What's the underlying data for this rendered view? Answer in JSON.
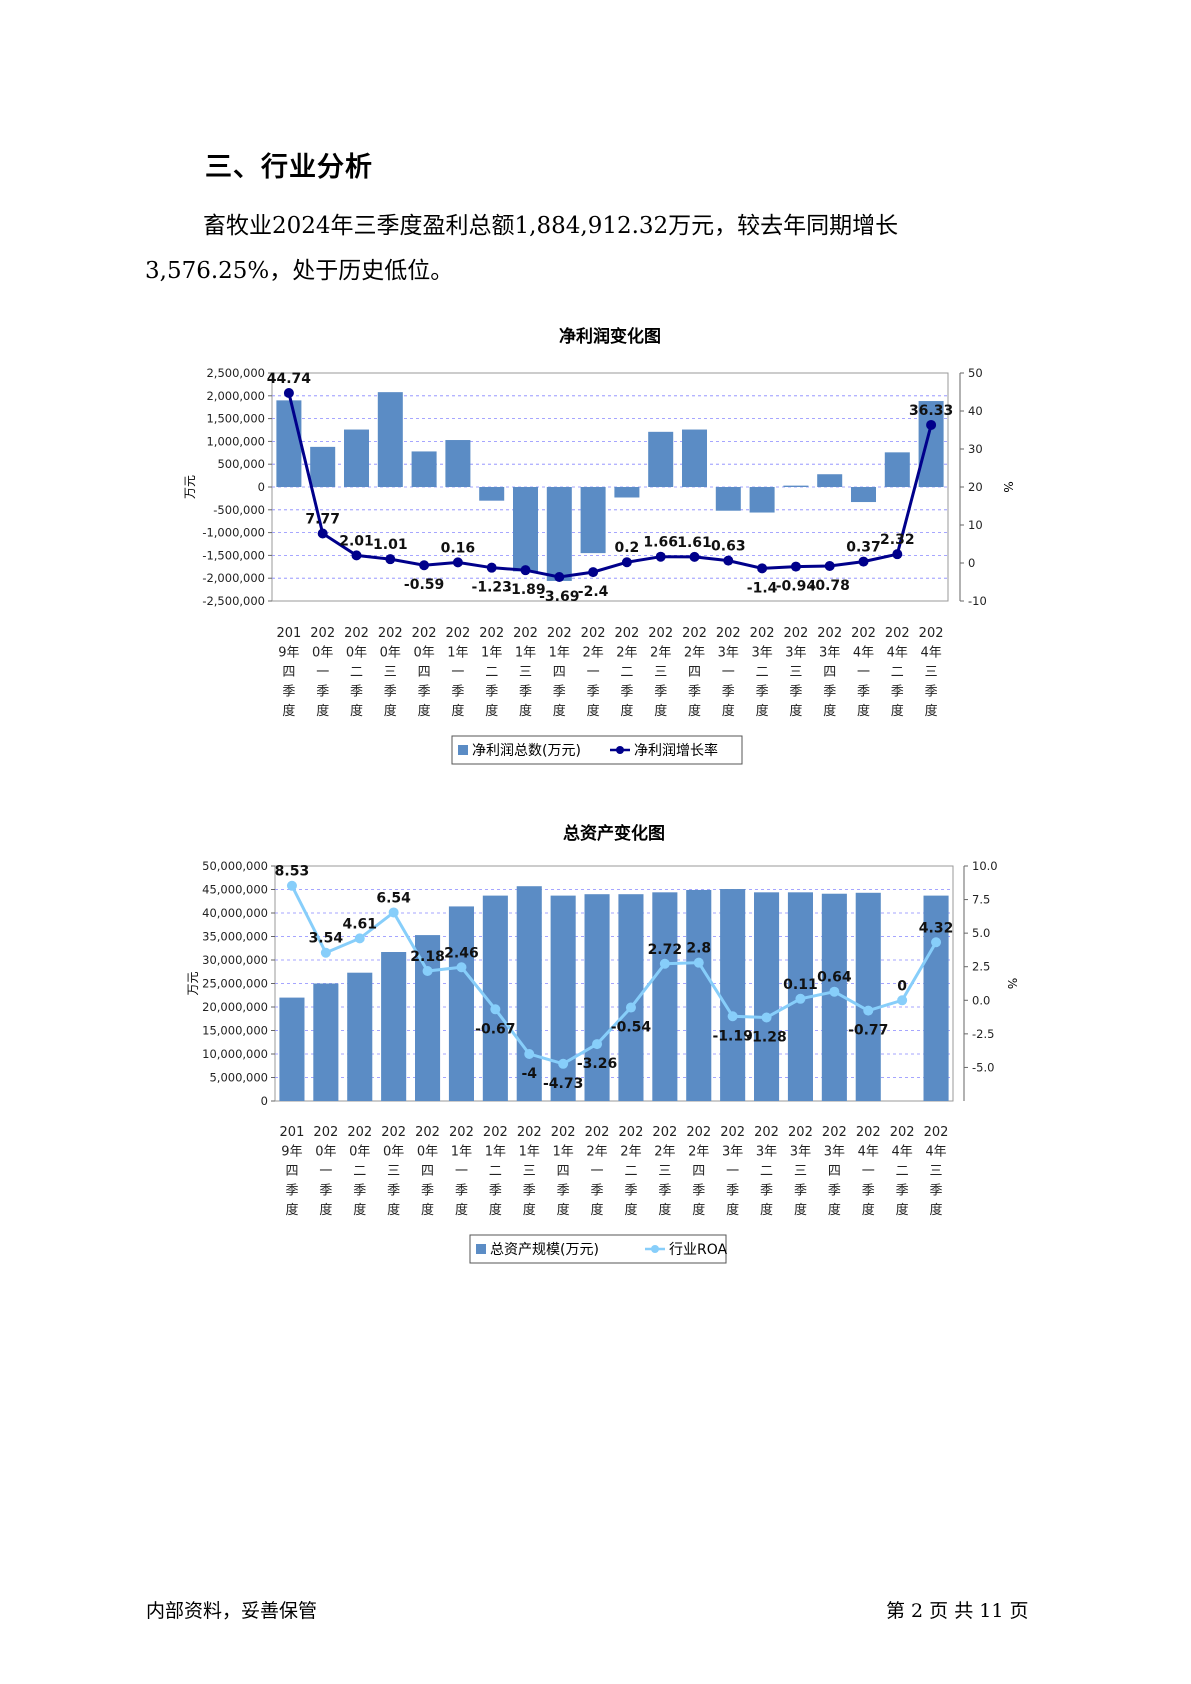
{
  "section_title": "三、行业分析",
  "paragraph": "畜牧业2024年三季度盈利总额1,884,912.32万元，较去年同期增长3,576.25%，处于历史低位。",
  "footer": {
    "left": "内部资料，妥善保管",
    "right": "第 2 页   共 11 页"
  },
  "chart_data": [
    {
      "type": "bar+line",
      "title": "净利润变化图",
      "ylabel": "万元",
      "y2label": "%",
      "ylim": [
        -2500000,
        2500000
      ],
      "yticks": [
        "2,500,000",
        "2,000,000",
        "1,500,000",
        "1,000,000",
        "500,000",
        "0",
        "-500,000",
        "-1,000,000",
        "-1,500,000",
        "-2,000,000",
        "-2,500,000"
      ],
      "y2lim": [
        -10,
        50
      ],
      "y2ticks": [
        "50",
        "40",
        "30",
        "20",
        "10",
        "0",
        "-10"
      ],
      "categories": [
        "2019年四季度",
        "2020年一季度",
        "2020年二季度",
        "2020年三季度",
        "2020年四季度",
        "2021年一季度",
        "2021年二季度",
        "2021年三季度",
        "2021年四季度",
        "2022年一季度",
        "2022年二季度",
        "2022年三季度",
        "2022年四季度",
        "2023年一季度",
        "2023年二季度",
        "2023年三季度",
        "2023年四季度",
        "2024年一季度",
        "2024年二季度",
        "2024年三季度"
      ],
      "bar_series": {
        "name": "净利润总数(万元)",
        "color": "#5b8cc5",
        "values": [
          1900000,
          880000,
          1260000,
          2080000,
          780000,
          1030000,
          -300000,
          -1850000,
          -2060000,
          -1450000,
          -230000,
          1210000,
          1260000,
          -520000,
          -560000,
          30000,
          280000,
          -330000,
          760000,
          1884912.32
        ]
      },
      "line_series": {
        "name": "净利润增长率",
        "color": "#00008b",
        "values": [
          44.74,
          7.77,
          2.01,
          1.01,
          -0.59,
          0.16,
          -1.23,
          -1.89,
          -3.69,
          -2.4,
          0.2,
          1.66,
          1.61,
          0.63,
          -1.4,
          -0.94,
          -0.78,
          0.37,
          2.32,
          36.33
        ],
        "labels": [
          "44.74",
          "7.77",
          "2.01",
          "1.01",
          "-0.59",
          "0.16",
          "-1.23",
          "-1.89",
          "-3.69",
          "-2.4",
          "0.2",
          "1.66",
          "1.61",
          "0.63",
          "-1.4",
          "-0.94",
          "-0.78",
          "0.37",
          "2.32",
          "36.33"
        ]
      },
      "legend": "bottom"
    },
    {
      "type": "bar+line",
      "title": "总资产变化图",
      "ylabel": "万元",
      "y2label": "%",
      "ylim": [
        0,
        50000000
      ],
      "yticks": [
        "50,000,000",
        "45,000,000",
        "40,000,000",
        "35,000,000",
        "30,000,000",
        "25,000,000",
        "20,000,000",
        "15,000,000",
        "10,000,000",
        "5,000,000",
        "0"
      ],
      "y2lim": [
        -7.5,
        10
      ],
      "y2ticks": [
        "10.0",
        "7.5",
        "5.0",
        "2.5",
        "0.0",
        "-2.5",
        "-5.0"
      ],
      "categories": [
        "2019年四季度",
        "2020年一季度",
        "2020年二季度",
        "2020年三季度",
        "2020年四季度",
        "2021年一季度",
        "2021年二季度",
        "2021年三季度",
        "2021年四季度",
        "2022年一季度",
        "2022年二季度",
        "2022年三季度",
        "2022年四季度",
        "2023年一季度",
        "2023年二季度",
        "2023年三季度",
        "2023年四季度",
        "2024年一季度",
        "2024年二季度",
        "2024年三季度"
      ],
      "bar_series": {
        "name": "总资产规模(万元)",
        "color": "#5b8cc5",
        "values": [
          22000000,
          25000000,
          27300000,
          31700000,
          35300000,
          41400000,
          43700000,
          45700000,
          43700000,
          44000000,
          44000000,
          44400000,
          44900000,
          45100000,
          44400000,
          44400000,
          44100000,
          44300000,
          0,
          43700000
        ]
      },
      "line_series": {
        "name": "行业ROA",
        "color": "#87cefa",
        "values": [
          8.53,
          3.54,
          4.61,
          6.54,
          2.18,
          2.46,
          -0.67,
          -4,
          -4.73,
          -3.26,
          -0.54,
          2.72,
          2.8,
          -1.19,
          -1.28,
          0.11,
          0.64,
          -0.77,
          0,
          4.32
        ],
        "labels": [
          "8.53",
          "3.54",
          "4.61",
          "6.54",
          "2.18",
          "2.46",
          "-0.67",
          "-4",
          "-4.73",
          "-3.26",
          "-0.54",
          "2.72",
          "2.8",
          "-1.19",
          "-1.28",
          "0.11",
          "0.64",
          "-0.77",
          "0",
          "4.32"
        ]
      },
      "legend": "bottom"
    }
  ]
}
